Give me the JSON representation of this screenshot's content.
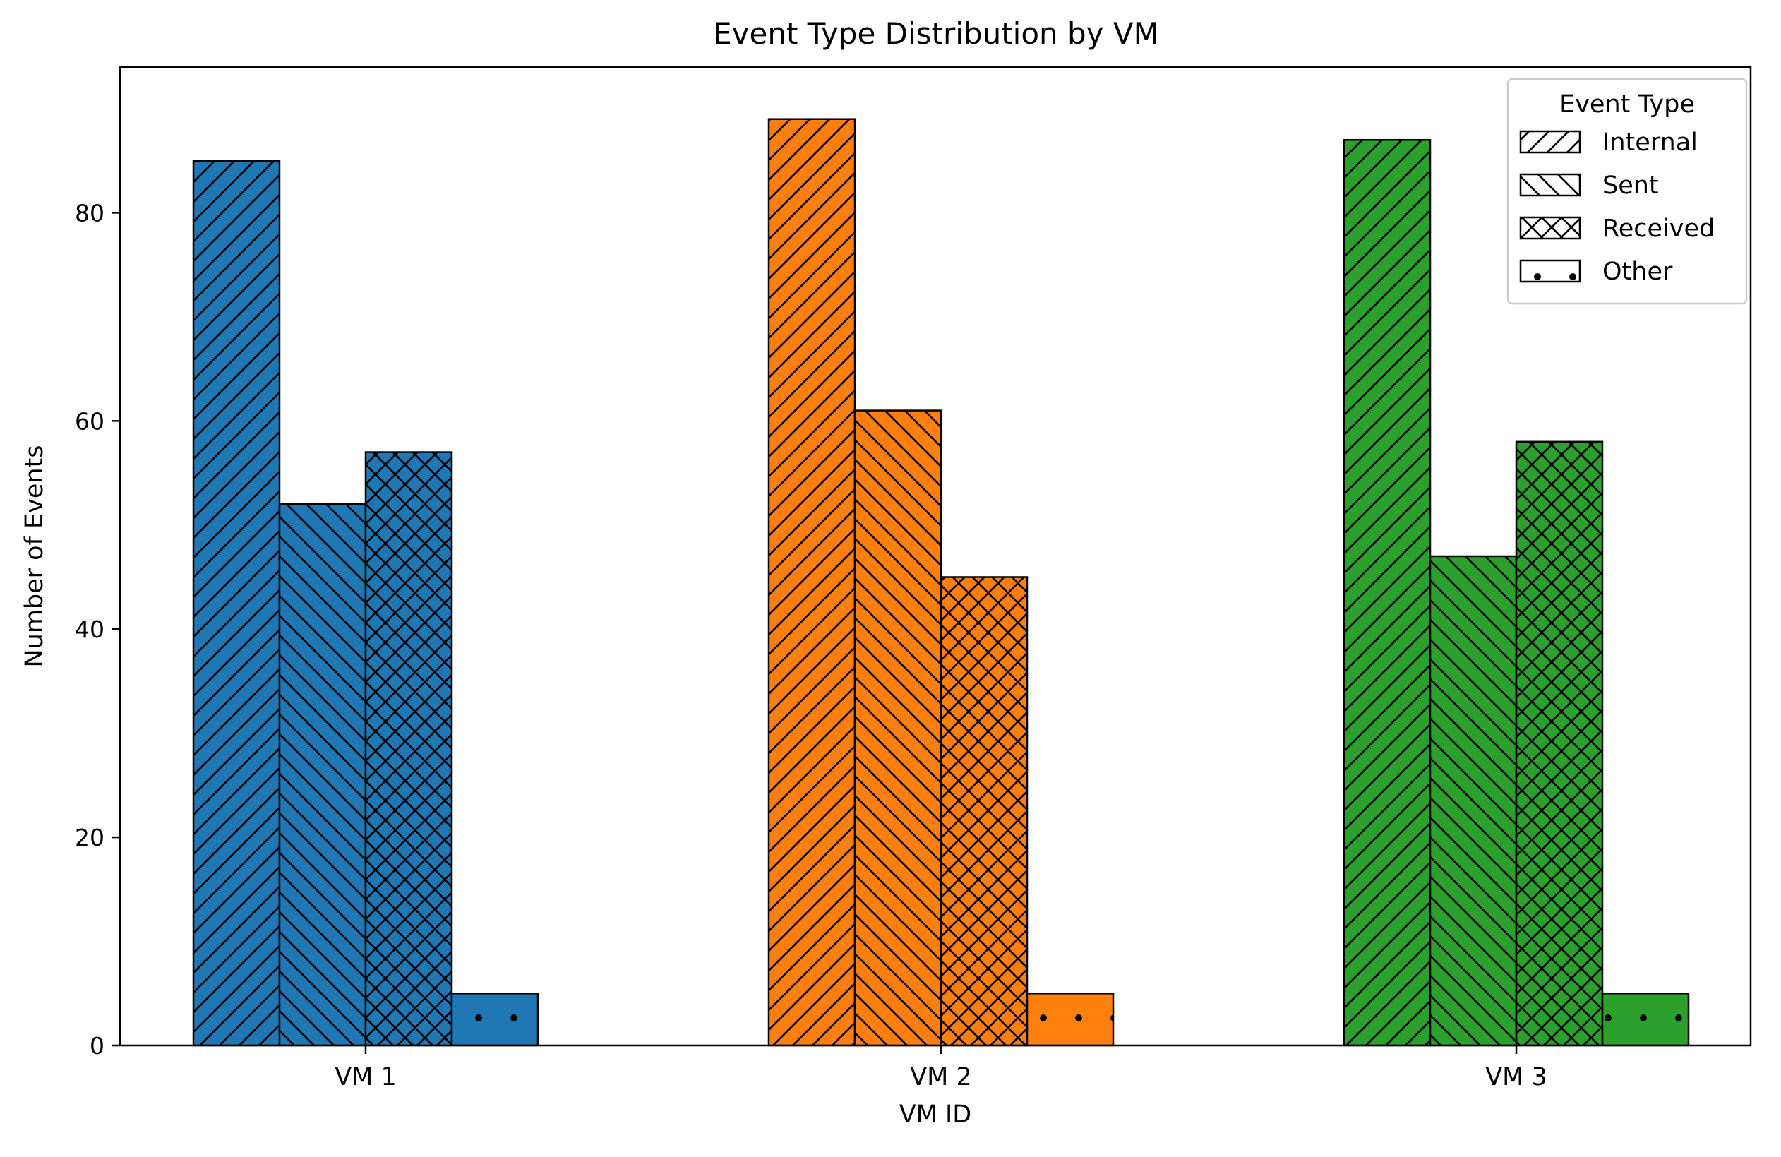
{
  "chart_data": {
    "type": "bar",
    "title": "Event Type Distribution by VM",
    "xlabel": "VM ID",
    "ylabel": "Number of Events",
    "categories": [
      "VM 1",
      "VM 2",
      "VM 3"
    ],
    "category_colors": [
      "#1f77b4",
      "#ff7f0e",
      "#2ca02c"
    ],
    "ylim": [
      0,
      94
    ],
    "yticks": [
      0,
      20,
      40,
      60,
      80
    ],
    "grid": false,
    "legend": {
      "title": "Event Type",
      "placement": "top-right"
    },
    "series": [
      {
        "name": "Internal",
        "hatch": "diag-forward",
        "values": [
          85,
          89,
          87
        ]
      },
      {
        "name": "Sent",
        "hatch": "diag-back",
        "values": [
          52,
          61,
          47
        ]
      },
      {
        "name": "Received",
        "hatch": "cross",
        "values": [
          57,
          45,
          58
        ]
      },
      {
        "name": "Other",
        "hatch": "dots",
        "values": [
          5,
          5,
          5
        ]
      }
    ]
  }
}
